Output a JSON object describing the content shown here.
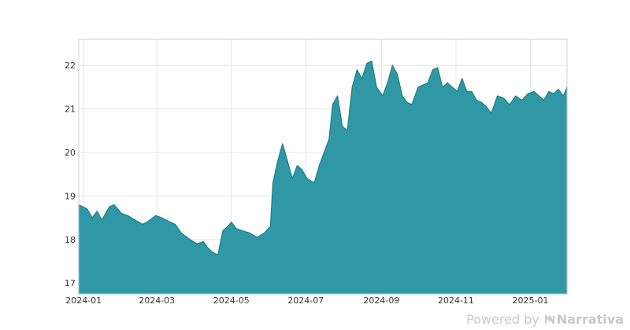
{
  "chart_data": {
    "type": "area",
    "title": "",
    "xlabel": "",
    "ylabel": "",
    "ylim": [
      16.75,
      22.6
    ],
    "xlim": [
      "2023-12-28",
      "2025-01-31"
    ],
    "yticks": [
      17,
      18,
      19,
      20,
      21,
      22
    ],
    "xticks": [
      "2024-01",
      "2024-03",
      "2024-05",
      "2024-07",
      "2024-09",
      "2024-11",
      "2025-01"
    ],
    "grid": true,
    "fill_color": "#2f98a4",
    "line_color": "#1f7f8a",
    "series": [
      {
        "x": [
          "2023-12-28",
          "2024-01-04",
          "2024-01-08",
          "2024-01-12",
          "2024-01-16",
          "2024-01-22",
          "2024-01-26",
          "2024-02-01",
          "2024-02-06",
          "2024-02-12",
          "2024-02-18",
          "2024-02-22",
          "2024-02-29",
          "2024-03-05",
          "2024-03-12",
          "2024-03-16",
          "2024-03-21",
          "2024-03-28",
          "2024-04-03",
          "2024-04-08",
          "2024-04-12",
          "2024-04-16",
          "2024-04-20",
          "2024-04-24",
          "2024-04-28",
          "2024-05-01",
          "2024-05-05",
          "2024-05-10",
          "2024-05-16",
          "2024-05-22",
          "2024-05-28",
          "2024-06-02",
          "2024-06-04",
          "2024-06-08",
          "2024-06-12",
          "2024-06-16",
          "2024-06-20",
          "2024-06-24",
          "2024-06-28",
          "2024-07-02",
          "2024-07-08",
          "2024-07-12",
          "2024-07-16",
          "2024-07-20",
          "2024-07-23",
          "2024-07-27",
          "2024-07-31",
          "2024-08-04",
          "2024-08-08",
          "2024-08-12",
          "2024-08-16",
          "2024-08-20",
          "2024-08-24",
          "2024-08-28",
          "2024-09-02",
          "2024-09-06",
          "2024-09-10",
          "2024-09-14",
          "2024-09-18",
          "2024-09-22",
          "2024-09-26",
          "2024-10-01",
          "2024-10-05",
          "2024-10-09",
          "2024-10-13",
          "2024-10-17",
          "2024-10-21",
          "2024-10-25",
          "2024-10-29",
          "2024-11-02",
          "2024-11-06",
          "2024-11-10",
          "2024-11-14",
          "2024-11-18",
          "2024-11-22",
          "2024-11-26",
          "2024-11-30",
          "2024-12-05",
          "2024-12-10",
          "2024-12-15",
          "2024-12-20",
          "2024-12-25",
          "2024-12-30",
          "2025-01-04",
          "2025-01-08",
          "2025-01-12",
          "2025-01-16",
          "2025-01-20",
          "2025-01-24",
          "2025-01-28",
          "2025-01-31"
        ],
        "y": [
          18.8,
          18.7,
          18.5,
          18.65,
          18.45,
          18.75,
          18.8,
          18.6,
          18.55,
          18.45,
          18.35,
          18.4,
          18.55,
          18.5,
          18.4,
          18.35,
          18.15,
          18.0,
          17.9,
          17.95,
          17.8,
          17.7,
          17.65,
          18.2,
          18.3,
          18.4,
          18.25,
          18.2,
          18.15,
          18.05,
          18.15,
          18.3,
          19.3,
          19.8,
          20.2,
          19.8,
          19.4,
          19.7,
          19.6,
          19.4,
          19.3,
          19.7,
          20.0,
          20.3,
          21.1,
          21.3,
          20.6,
          20.5,
          21.5,
          21.9,
          21.7,
          22.05,
          22.1,
          21.5,
          21.3,
          21.6,
          22.0,
          21.8,
          21.3,
          21.15,
          21.1,
          21.5,
          21.55,
          21.6,
          21.9,
          21.95,
          21.5,
          21.6,
          21.5,
          21.4,
          21.7,
          21.4,
          21.4,
          21.2,
          21.15,
          21.05,
          20.9,
          21.3,
          21.25,
          21.1,
          21.3,
          21.2,
          21.35,
          21.4,
          21.3,
          21.2,
          21.4,
          21.35,
          21.45,
          21.3,
          21.5
        ]
      }
    ]
  },
  "footer": {
    "powered_by": "Powered by",
    "brand": "Narrativa"
  }
}
